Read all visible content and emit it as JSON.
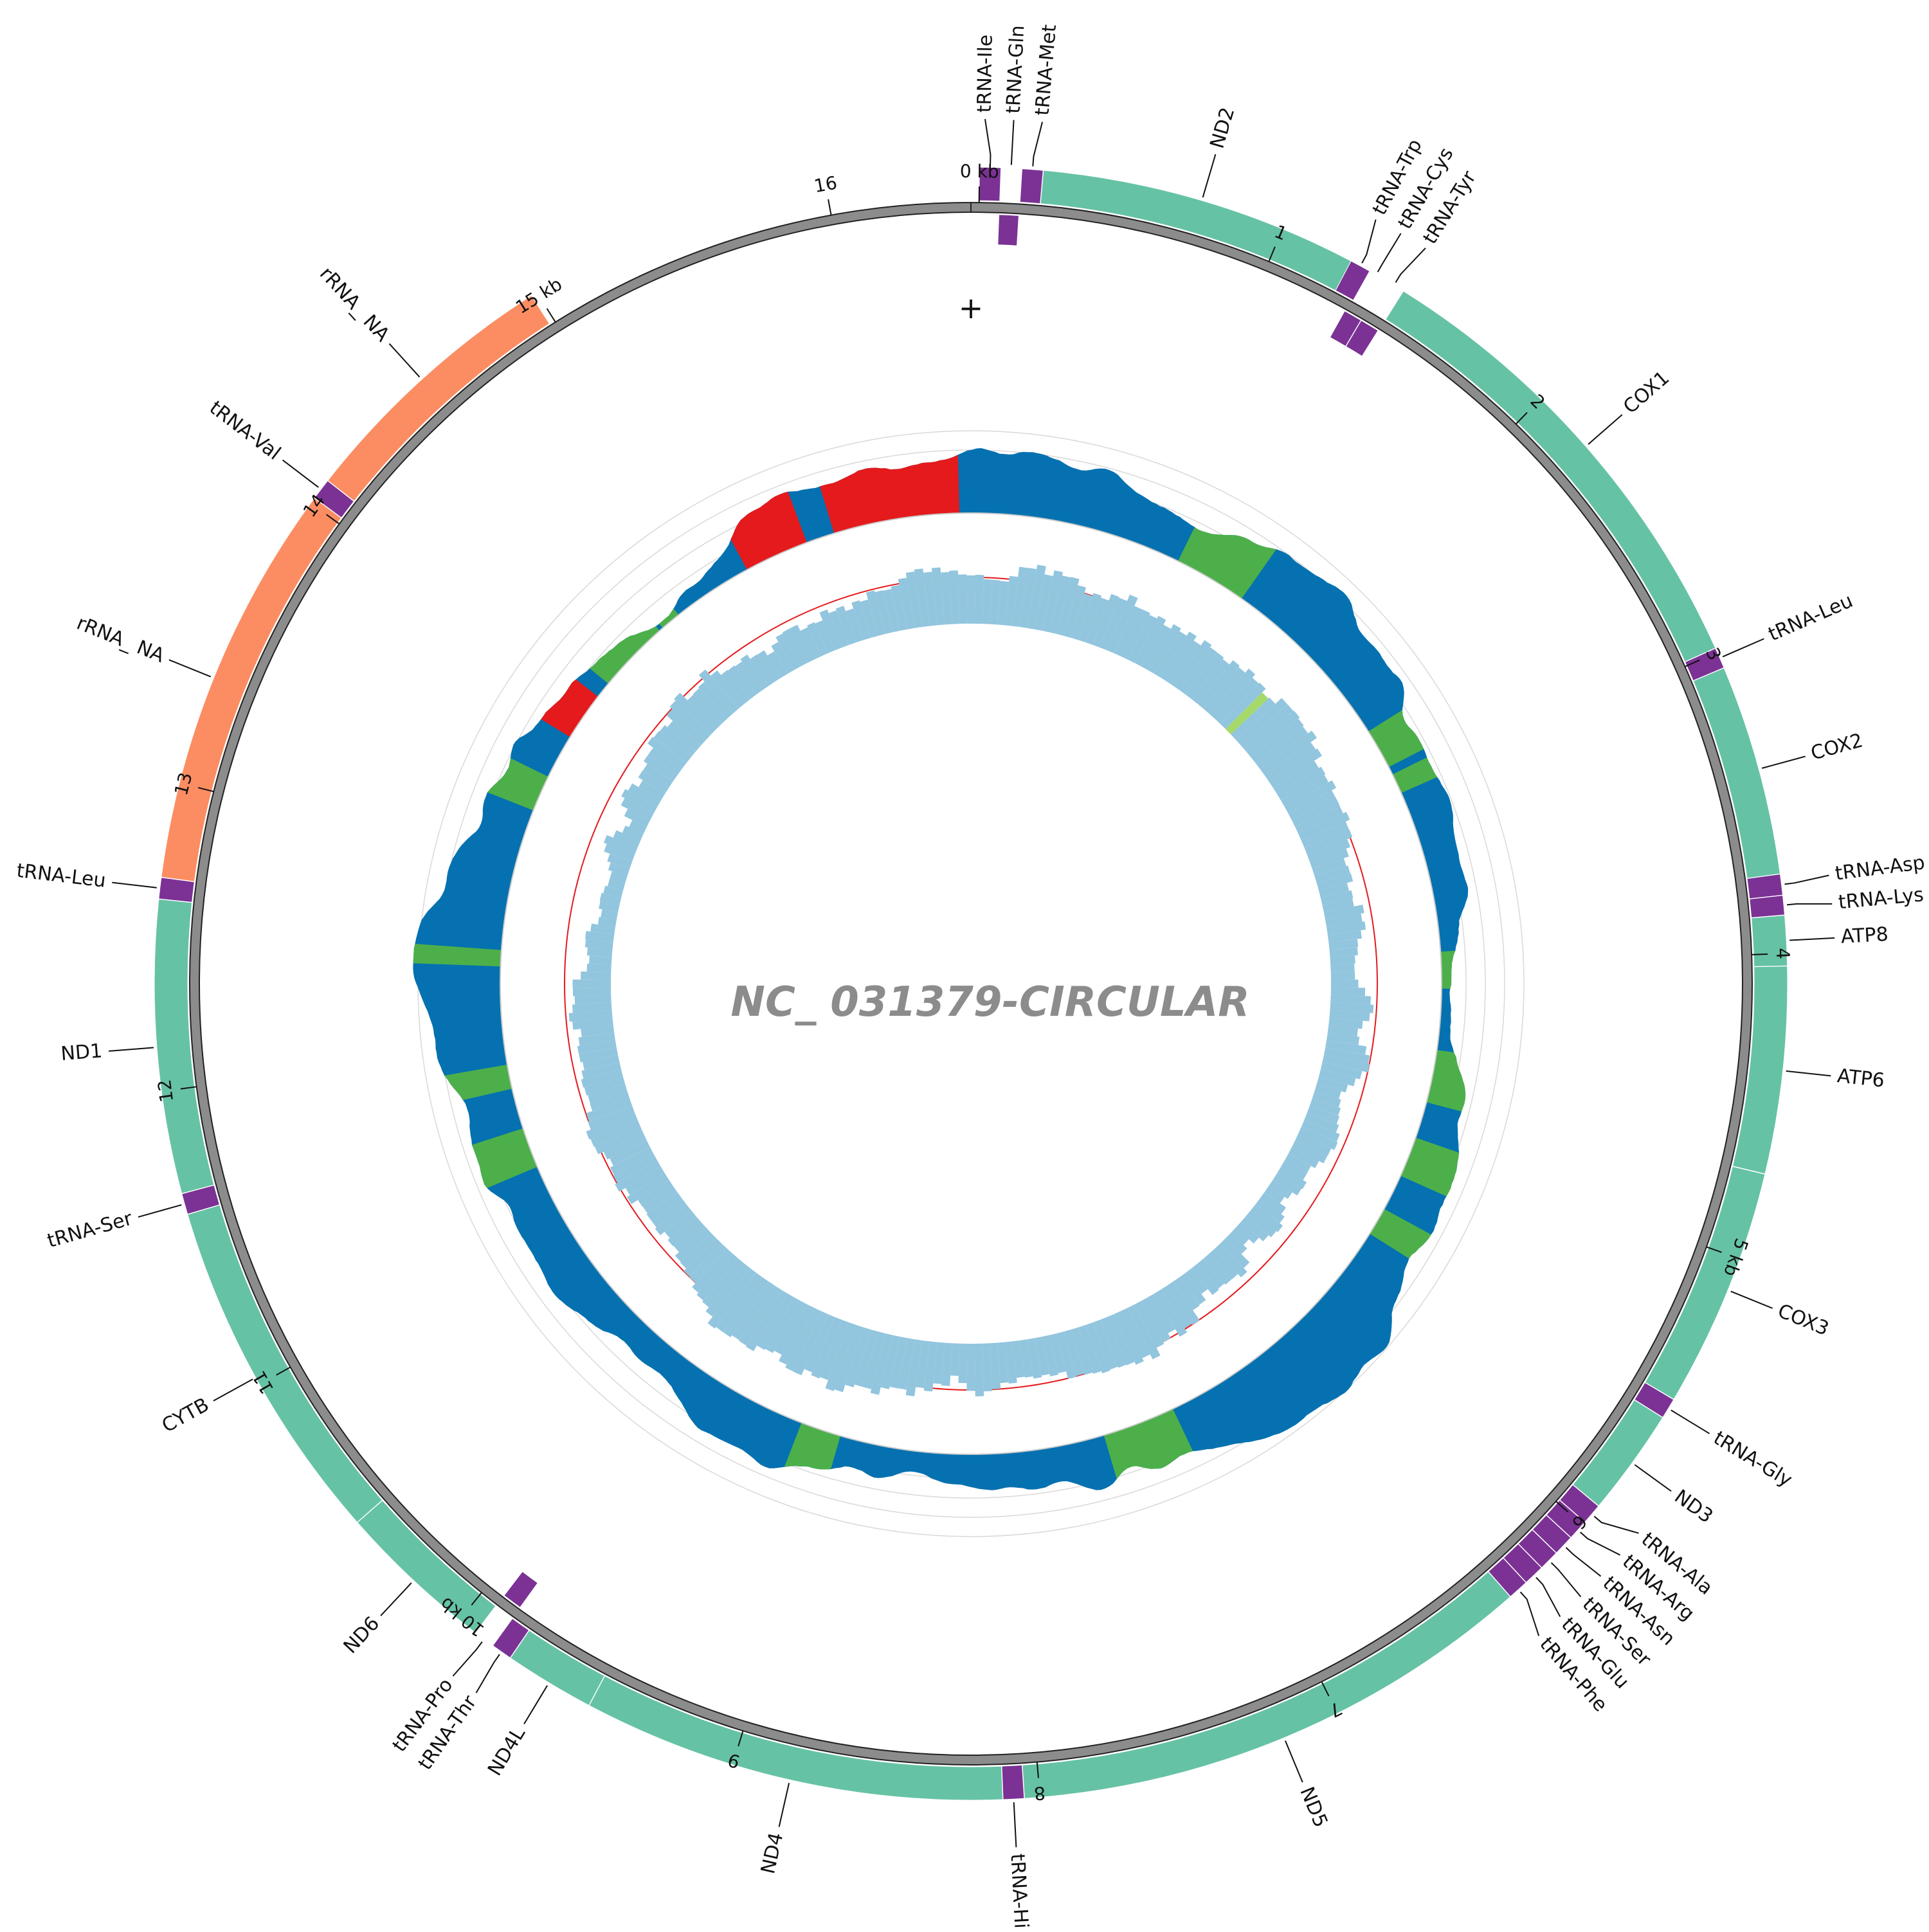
{
  "title": "NC_ 031379-CIRCULAR",
  "strand_symbol": "+",
  "genome_length": 16500,
  "colors": {
    "gene": "#66c2a5",
    "trna": "#7b3294",
    "rrna": "#fc8d62",
    "backbone": "#8c8c8c",
    "coverage_blue": "#0571b0",
    "coverage_green": "#4daf4a",
    "coverage_red": "#e41a1c",
    "gc_bar": "#92c5de",
    "gc_highlight": "#a6d96a",
    "guide_red": "#e41a1c",
    "grid": "#d9d9d9"
  },
  "ticks": [
    {
      "pos": 0,
      "label": "0 kb"
    },
    {
      "pos": 1000,
      "label": "1"
    },
    {
      "pos": 2000,
      "label": "2"
    },
    {
      "pos": 3000,
      "label": "3"
    },
    {
      "pos": 4000,
      "label": "4"
    },
    {
      "pos": 5000,
      "label": "5 kb"
    },
    {
      "pos": 6000,
      "label": "6"
    },
    {
      "pos": 7000,
      "label": "7"
    },
    {
      "pos": 8000,
      "label": "8"
    },
    {
      "pos": 9000,
      "label": "9"
    },
    {
      "pos": 10000,
      "label": "10 kb"
    },
    {
      "pos": 11000,
      "label": "11"
    },
    {
      "pos": 12000,
      "label": "12"
    },
    {
      "pos": 13000,
      "label": "13"
    },
    {
      "pos": 14000,
      "label": "14"
    },
    {
      "pos": 15000,
      "label": "15 kb"
    },
    {
      "pos": 16000,
      "label": "16"
    }
  ],
  "features": [
    {
      "name": "tRNA-Ile",
      "type": "trna",
      "start": 0,
      "end": 69,
      "lane": "out"
    },
    {
      "name": "tRNA-Gln",
      "type": "trna",
      "start": 68,
      "end": 136,
      "lane": "in"
    },
    {
      "name": "tRNA-Met",
      "type": "trna",
      "start": 137,
      "end": 205,
      "lane": "out"
    },
    {
      "name": "ND2",
      "type": "gene",
      "start": 206,
      "end": 1245,
      "lane": "out"
    },
    {
      "name": "tRNA-Trp",
      "type": "trna",
      "start": 1244,
      "end": 1312,
      "lane": "out"
    },
    {
      "name": "tRNA-Cys",
      "type": "trna",
      "start": 1304,
      "end": 1368,
      "lane": "in"
    },
    {
      "name": "tRNA-Tyr",
      "type": "trna",
      "start": 1369,
      "end": 1436,
      "lane": "in"
    },
    {
      "name": "COX1",
      "type": "gene",
      "start": 1438,
      "end": 2985,
      "lane": "out"
    },
    {
      "name": "tRNA-Leu",
      "type": "trna",
      "start": 2986,
      "end": 3054,
      "lane": "out"
    },
    {
      "name": "COX2",
      "type": "gene",
      "start": 3055,
      "end": 3743,
      "lane": "out"
    },
    {
      "name": "tRNA-Asp",
      "type": "trna",
      "start": 3744,
      "end": 3812,
      "lane": "out"
    },
    {
      "name": "tRNA-Lys",
      "type": "trna",
      "start": 3813,
      "end": 3876,
      "lane": "out"
    },
    {
      "name": "ATP8",
      "type": "gene",
      "start": 3877,
      "end": 4040,
      "lane": "out"
    },
    {
      "name": "ATP6",
      "type": "gene",
      "start": 4041,
      "end": 4715,
      "lane": "out"
    },
    {
      "name": "COX3",
      "type": "gene",
      "start": 4716,
      "end": 5500,
      "lane": "out"
    },
    {
      "name": "tRNA-Gly",
      "type": "trna",
      "start": 5501,
      "end": 5568,
      "lane": "out"
    },
    {
      "name": "ND3",
      "type": "gene",
      "start": 5569,
      "end": 5920,
      "lane": "out"
    },
    {
      "name": "tRNA-Ala",
      "type": "trna",
      "start": 5921,
      "end": 5988,
      "lane": "out"
    },
    {
      "name": "tRNA-Arg",
      "type": "trna",
      "start": 5989,
      "end": 6055,
      "lane": "out"
    },
    {
      "name": "tRNA-Asn",
      "type": "trna",
      "start": 6056,
      "end": 6123,
      "lane": "out"
    },
    {
      "name": "tRNA-Ser",
      "type": "trna",
      "start": 6124,
      "end": 6190,
      "lane": "out"
    },
    {
      "name": "tRNA-Glu",
      "type": "trna",
      "start": 6191,
      "end": 6259,
      "lane": "out"
    },
    {
      "name": "tRNA-Phe",
      "type": "trna",
      "start": 6260,
      "end": 6327,
      "lane": "out"
    },
    {
      "name": "ND5",
      "type": "gene",
      "start": 6328,
      "end": 8050,
      "lane": "out"
    },
    {
      "name": "tRNA-His",
      "type": "trna",
      "start": 8051,
      "end": 8119,
      "lane": "out"
    },
    {
      "name": "ND4",
      "type": "gene",
      "start": 8120,
      "end": 9500,
      "lane": "out"
    },
    {
      "name": "ND4L",
      "type": "gene",
      "start": 9501,
      "end": 9796,
      "lane": "out"
    },
    {
      "name": "tRNA-Thr",
      "type": "trna",
      "start": 9797,
      "end": 9865,
      "lane": "out"
    },
    {
      "name": "tRNA-Pro",
      "type": "trna",
      "start": 9866,
      "end": 9934,
      "lane": "in"
    },
    {
      "name": "ND6",
      "type": "gene",
      "start": 9935,
      "end": 10455,
      "lane": "out"
    },
    {
      "name": "CYTB",
      "type": "gene",
      "start": 10456,
      "end": 11595,
      "lane": "out"
    },
    {
      "name": "tRNA-Ser",
      "type": "trna",
      "start": 11596,
      "end": 11664,
      "lane": "out"
    },
    {
      "name": "ND1",
      "type": "gene",
      "start": 11665,
      "end": 12620,
      "lane": "out"
    },
    {
      "name": "tRNA-Leu",
      "type": "trna",
      "start": 12621,
      "end": 12690,
      "lane": "out"
    },
    {
      "name": "rRNA_ NA",
      "type": "rrna",
      "start": 12691,
      "end": 14020,
      "lane": "out"
    },
    {
      "name": "tRNA-Val",
      "type": "trna",
      "start": 14021,
      "end": 14090,
      "lane": "out"
    },
    {
      "name": "rRNA_ NA",
      "type": "rrna",
      "start": 14091,
      "end": 14980,
      "lane": "out"
    }
  ],
  "green_bands": [
    [
      1180,
      1560
    ],
    [
      2620,
      2840
    ],
    [
      2890,
      3000
    ],
    [
      3940,
      4120
    ],
    [
      4480,
      4560
    ],
    [
      4560,
      4760
    ],
    [
      4990,
      5180
    ],
    [
      5420,
      5560
    ],
    [
      7080,
      7460
    ],
    [
      8980,
      9170
    ],
    [
      11300,
      11520
    ],
    [
      11760,
      11840
    ],
    [
      11840,
      11880
    ],
    [
      12450,
      12520
    ],
    [
      13360,
      13540
    ],
    [
      14180,
      14560
    ],
    [
      14620,
      14700
    ]
  ],
  "red_bands": [
    [
      13800,
      14050
    ],
    [
      15180,
      15520
    ],
    [
      15720,
      16400
    ]
  ],
  "gc_highlight_bands": [
    [
      2000,
      2080
    ]
  ]
}
